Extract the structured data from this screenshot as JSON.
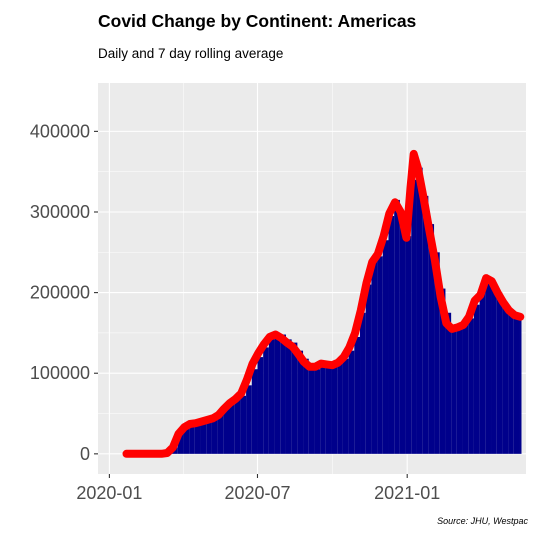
{
  "title": "Covid Change by Continent: Americas",
  "subtitle": "Daily and 7 day rolling average",
  "caption": "Source: JHU, Westpac",
  "colors": {
    "panel": "#ebebeb",
    "grid_major": "#ffffff",
    "bars": "#00008b",
    "rolling_line": "#ff0000",
    "tick_text": "#4d4d4d"
  },
  "chart_data": {
    "type": "bar",
    "x_axis": {
      "type": "date",
      "range": [
        "2019-12-18",
        "2021-05-27"
      ],
      "ticks": [
        {
          "label": "2020-01",
          "date": "2020-01-01"
        },
        {
          "label": "2020-07",
          "date": "2020-07-01"
        },
        {
          "label": "2021-01",
          "date": "2021-01-01"
        }
      ]
    },
    "y_axis": {
      "range": [
        -25000,
        460000
      ],
      "ticks": [
        {
          "label": "0",
          "value": 0
        },
        {
          "label": "100000",
          "value": 100000
        },
        {
          "label": "200000",
          "value": 200000
        },
        {
          "label": "300000",
          "value": 300000
        },
        {
          "label": "400000",
          "value": 400000
        }
      ]
    },
    "grid": true,
    "legend": "none",
    "series": [
      {
        "type": "bar",
        "role": "daily",
        "data": [
          [
            "2020-01-22",
            0
          ],
          [
            "2020-03-01",
            0
          ],
          [
            "2020-03-10",
            1000
          ],
          [
            "2020-03-18",
            8000
          ],
          [
            "2020-03-25",
            25000
          ],
          [
            "2020-04-01",
            32000
          ],
          [
            "2020-04-08",
            37000
          ],
          [
            "2020-04-15",
            40000
          ],
          [
            "2020-04-22",
            43000
          ],
          [
            "2020-04-29",
            44000
          ],
          [
            "2020-05-06",
            46000
          ],
          [
            "2020-05-13",
            50000
          ],
          [
            "2020-05-20",
            58000
          ],
          [
            "2020-05-27",
            64000
          ],
          [
            "2020-06-03",
            68000
          ],
          [
            "2020-06-10",
            72000
          ],
          [
            "2020-06-17",
            85000
          ],
          [
            "2020-06-24",
            105000
          ],
          [
            "2020-07-01",
            120000
          ],
          [
            "2020-07-08",
            132000
          ],
          [
            "2020-07-15",
            142000
          ],
          [
            "2020-07-22",
            150000
          ],
          [
            "2020-07-29",
            148000
          ],
          [
            "2020-08-05",
            142000
          ],
          [
            "2020-08-12",
            138000
          ],
          [
            "2020-08-19",
            128000
          ],
          [
            "2020-08-26",
            118000
          ],
          [
            "2020-09-02",
            110000
          ],
          [
            "2020-09-09",
            105000
          ],
          [
            "2020-09-16",
            110000
          ],
          [
            "2020-09-23",
            112000
          ],
          [
            "2020-09-30",
            110000
          ],
          [
            "2020-10-07",
            112000
          ],
          [
            "2020-10-14",
            118000
          ],
          [
            "2020-10-21",
            128000
          ],
          [
            "2020-10-28",
            145000
          ],
          [
            "2020-11-04",
            175000
          ],
          [
            "2020-11-11",
            210000
          ],
          [
            "2020-11-18",
            240000
          ],
          [
            "2020-11-25",
            245000
          ],
          [
            "2020-12-02",
            265000
          ],
          [
            "2020-12-09",
            295000
          ],
          [
            "2020-12-16",
            315000
          ],
          [
            "2020-12-23",
            300000
          ],
          [
            "2020-12-30",
            270000
          ],
          [
            "2021-01-06",
            340000
          ],
          [
            "2021-01-13",
            355000
          ],
          [
            "2021-01-20",
            320000
          ],
          [
            "2021-01-27",
            285000
          ],
          [
            "2021-02-03",
            250000
          ],
          [
            "2021-02-10",
            205000
          ],
          [
            "2021-02-17",
            175000
          ],
          [
            "2021-02-24",
            160000
          ],
          [
            "2021-03-03",
            158000
          ],
          [
            "2021-03-10",
            160000
          ],
          [
            "2021-03-17",
            168000
          ],
          [
            "2021-03-24",
            185000
          ],
          [
            "2021-03-31",
            205000
          ],
          [
            "2021-04-07",
            215000
          ],
          [
            "2021-04-14",
            212000
          ],
          [
            "2021-04-21",
            200000
          ],
          [
            "2021-04-28",
            185000
          ],
          [
            "2021-05-05",
            178000
          ],
          [
            "2021-05-12",
            172000
          ],
          [
            "2021-05-19",
            170000
          ]
        ]
      },
      {
        "type": "line",
        "role": "7 day rolling average",
        "data": [
          [
            "2020-01-22",
            0
          ],
          [
            "2020-02-15",
            0
          ],
          [
            "2020-03-05",
            0
          ],
          [
            "2020-03-12",
            1000
          ],
          [
            "2020-03-19",
            8000
          ],
          [
            "2020-03-26",
            25000
          ],
          [
            "2020-04-02",
            33000
          ],
          [
            "2020-04-09",
            37000
          ],
          [
            "2020-04-16",
            38000
          ],
          [
            "2020-04-23",
            40000
          ],
          [
            "2020-04-30",
            42000
          ],
          [
            "2020-05-07",
            44000
          ],
          [
            "2020-05-14",
            48000
          ],
          [
            "2020-05-21",
            56000
          ],
          [
            "2020-05-28",
            63000
          ],
          [
            "2020-06-04",
            68000
          ],
          [
            "2020-06-11",
            75000
          ],
          [
            "2020-06-18",
            92000
          ],
          [
            "2020-06-25",
            112000
          ],
          [
            "2020-07-02",
            125000
          ],
          [
            "2020-07-09",
            136000
          ],
          [
            "2020-07-16",
            145000
          ],
          [
            "2020-07-23",
            148000
          ],
          [
            "2020-07-30",
            144000
          ],
          [
            "2020-08-06",
            138000
          ],
          [
            "2020-08-13",
            133000
          ],
          [
            "2020-08-20",
            124000
          ],
          [
            "2020-08-27",
            114000
          ],
          [
            "2020-09-03",
            108000
          ],
          [
            "2020-09-10",
            108000
          ],
          [
            "2020-09-17",
            112000
          ],
          [
            "2020-09-24",
            111000
          ],
          [
            "2020-10-01",
            110000
          ],
          [
            "2020-10-08",
            113000
          ],
          [
            "2020-10-15",
            120000
          ],
          [
            "2020-10-22",
            132000
          ],
          [
            "2020-10-29",
            150000
          ],
          [
            "2020-11-05",
            178000
          ],
          [
            "2020-11-12",
            212000
          ],
          [
            "2020-11-19",
            238000
          ],
          [
            "2020-11-26",
            248000
          ],
          [
            "2020-12-03",
            270000
          ],
          [
            "2020-12-10",
            298000
          ],
          [
            "2020-12-17",
            312000
          ],
          [
            "2020-12-24",
            300000
          ],
          [
            "2020-12-31",
            268000
          ],
          [
            "2021-01-05",
            330000
          ],
          [
            "2021-01-09",
            372000
          ],
          [
            "2021-01-14",
            355000
          ],
          [
            "2021-01-21",
            318000
          ],
          [
            "2021-01-28",
            278000
          ],
          [
            "2021-02-04",
            240000
          ],
          [
            "2021-02-11",
            195000
          ],
          [
            "2021-02-18",
            162000
          ],
          [
            "2021-02-25",
            155000
          ],
          [
            "2021-03-04",
            157000
          ],
          [
            "2021-03-11",
            160000
          ],
          [
            "2021-03-18",
            170000
          ],
          [
            "2021-03-25",
            190000
          ],
          [
            "2021-04-01",
            197000
          ],
          [
            "2021-04-08",
            218000
          ],
          [
            "2021-04-15",
            214000
          ],
          [
            "2021-04-22",
            200000
          ],
          [
            "2021-04-29",
            188000
          ],
          [
            "2021-05-06",
            178000
          ],
          [
            "2021-05-13",
            172000
          ],
          [
            "2021-05-20",
            170000
          ]
        ]
      }
    ]
  }
}
